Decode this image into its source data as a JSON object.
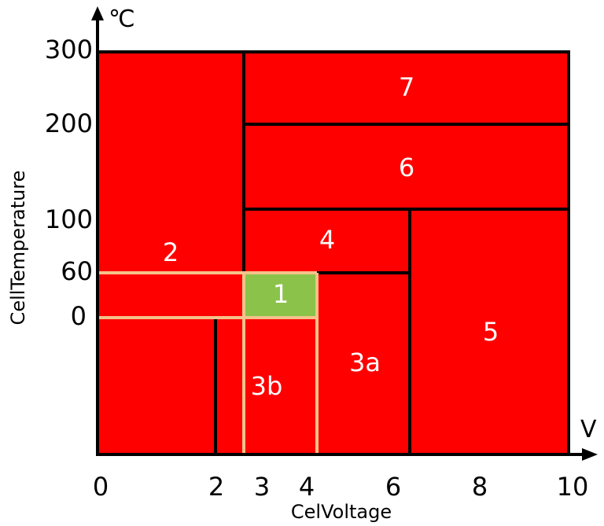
{
  "diagram": {
    "x_axis": {
      "unit": "V",
      "title": "CelVoltage",
      "ticks": [
        "0",
        "2",
        "3",
        "4",
        "6",
        "8",
        "10"
      ]
    },
    "y_axis": {
      "unit": "℃",
      "title": "CellTemperature",
      "ticks": [
        "300",
        "200",
        "100",
        "60",
        "0"
      ]
    },
    "zones": [
      {
        "id": "7",
        "label": "7",
        "color": "#ff0000"
      },
      {
        "id": "6",
        "label": "6",
        "color": "#ff0000"
      },
      {
        "id": "5",
        "label": "5",
        "color": "#ff0000"
      },
      {
        "id": "4",
        "label": "4",
        "color": "#ff0000"
      },
      {
        "id": "3a",
        "label": "3a",
        "color": "#ff0000"
      },
      {
        "id": "3b",
        "label": "3b",
        "color": "#ff0000"
      },
      {
        "id": "2",
        "label": "2",
        "color": "#ff0000"
      },
      {
        "id": "1",
        "label": "1",
        "color": "#8bc34a"
      }
    ],
    "colors": {
      "danger": "#ff0000",
      "safe": "#8bc34a",
      "boundary": "#000000",
      "safe_outline": "#f4c28a"
    }
  }
}
